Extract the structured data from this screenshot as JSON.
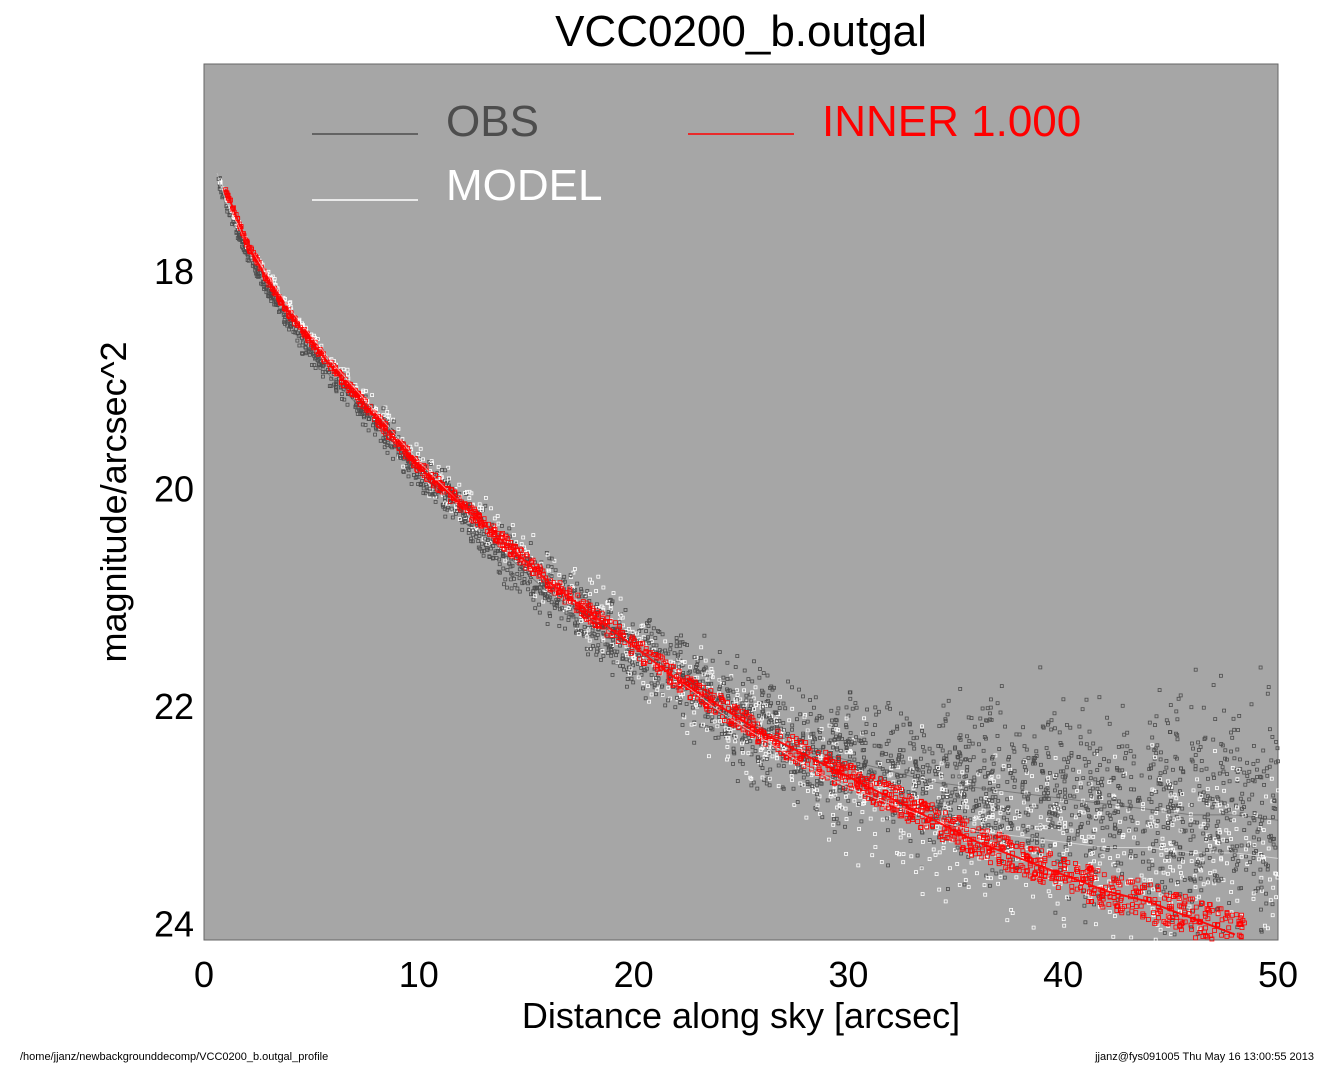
{
  "chart_data": {
    "type": "scatter",
    "title": "VCC0200_b.outgal",
    "xlabel": "Distance along sky [arcsec]",
    "ylabel": "magnitude/arcsec^2",
    "xlim": [
      0,
      50
    ],
    "ylim": [
      24.15,
      16.1
    ],
    "y_inverted": true,
    "x_ticks": [
      "0",
      "10",
      "20",
      "30",
      "40",
      "50"
    ],
    "y_ticks": [
      "18",
      "20",
      "22",
      "24"
    ],
    "plot_background": "#a6a6a6",
    "grid": false,
    "legend_position": "top",
    "legend": [
      {
        "label": "OBS",
        "color": "#4d4d4d"
      },
      {
        "label": "INNER  1.000",
        "color": "#ff0000"
      },
      {
        "label": "MODEL",
        "color": "#ffffff"
      }
    ],
    "series": [
      {
        "name": "OBS",
        "color": "#4d4d4d",
        "marker": "square",
        "x": [
          0.6,
          1,
          2,
          3,
          4,
          5,
          6,
          8,
          10,
          12,
          14,
          16,
          18,
          20,
          22,
          24,
          26,
          28,
          30,
          32,
          34,
          36,
          38,
          40,
          42,
          44,
          46,
          48,
          50
        ],
        "y": [
          17.1,
          17.4,
          17.85,
          18.2,
          18.5,
          18.75,
          19.0,
          19.4,
          19.85,
          20.2,
          20.6,
          20.95,
          21.2,
          21.45,
          21.7,
          21.95,
          22.2,
          22.4,
          22.5,
          22.6,
          22.7,
          22.75,
          22.8,
          22.85,
          22.9,
          22.95,
          23.0,
          23.0,
          23.05
        ]
      },
      {
        "name": "MODEL",
        "color": "#ffffff",
        "marker": "square",
        "x": [
          0.6,
          1,
          2,
          3,
          4,
          5,
          6,
          8,
          10,
          12,
          14,
          16,
          18,
          20,
          22,
          24,
          26,
          28,
          30,
          32,
          34,
          36,
          38,
          40,
          42,
          44,
          46,
          48,
          50
        ],
        "y": [
          17.1,
          17.35,
          17.75,
          18.05,
          18.35,
          18.6,
          18.85,
          19.3,
          19.75,
          20.15,
          20.5,
          20.85,
          21.15,
          21.45,
          21.75,
          22.05,
          22.3,
          22.55,
          22.75,
          22.9,
          23.05,
          23.15,
          23.2,
          23.25,
          23.3,
          23.3,
          23.35,
          23.35,
          23.4
        ]
      },
      {
        "name": "INNER  1.000",
        "color": "#ff0000",
        "marker": "square",
        "x": [
          1,
          2,
          3,
          4,
          5,
          6,
          8,
          10,
          12,
          14,
          16,
          18,
          20,
          22,
          24,
          26,
          28,
          30,
          32,
          34,
          36,
          38,
          40,
          42,
          44,
          46,
          48
        ],
        "y": [
          17.25,
          17.75,
          18.1,
          18.4,
          18.65,
          18.9,
          19.35,
          19.8,
          20.15,
          20.5,
          20.85,
          21.15,
          21.45,
          21.75,
          22.0,
          22.25,
          22.45,
          22.65,
          22.85,
          23.05,
          23.25,
          23.4,
          23.55,
          23.7,
          23.8,
          23.95,
          24.1
        ]
      }
    ]
  },
  "footer": {
    "left": "/home/jjanz/newbackgrounddecomp/VCC0200_b.outgal_profile",
    "right": "jjanz@fys091005  Thu May 16 13:00:55 2013"
  }
}
